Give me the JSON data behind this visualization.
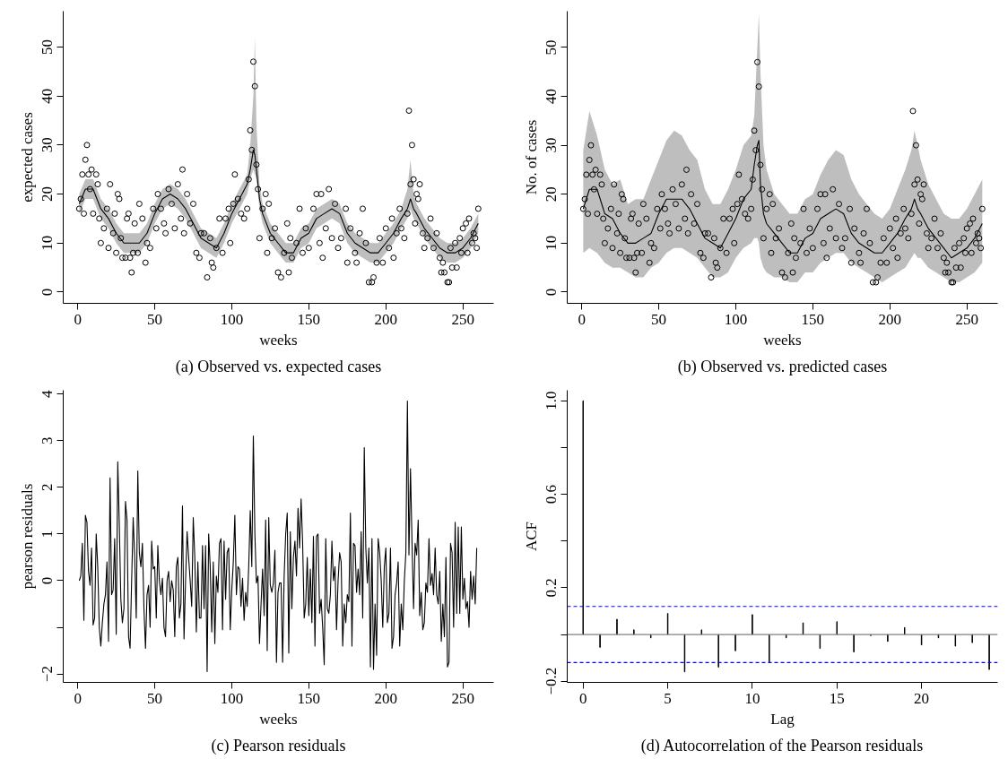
{
  "chart_data": [
    {
      "type": "line",
      "title": "(a) Observed vs. expected cases",
      "xlabel": "weeks",
      "ylabel": "expected cases",
      "xlim": [
        -9.4,
        270
      ],
      "ylim": [
        -2.3,
        57.3
      ],
      "xticks": [
        0,
        50,
        100,
        150,
        200,
        250
      ],
      "yticks": [
        0,
        10,
        20,
        30,
        40,
        50
      ],
      "grid": false,
      "series": [
        {
          "type": "line",
          "color": "#000000",
          "marker": "none",
          "line_style": "solid",
          "x": [
            1,
            5,
            10,
            15,
            20,
            25,
            30,
            35,
            40,
            45,
            50,
            55,
            60,
            65,
            70,
            75,
            80,
            85,
            90,
            95,
            100,
            105,
            110,
            112,
            114,
            115,
            116,
            118,
            120,
            125,
            130,
            135,
            140,
            145,
            150,
            155,
            160,
            165,
            170,
            175,
            180,
            185,
            190,
            195,
            200,
            205,
            210,
            214,
            216,
            218,
            220,
            225,
            230,
            235,
            240,
            245,
            250,
            255,
            260
          ],
          "values": [
            18,
            21,
            21,
            17,
            15,
            12,
            10,
            10,
            10,
            12,
            16,
            19,
            20,
            19,
            17,
            14,
            11,
            10,
            9,
            12,
            16,
            19,
            22,
            25,
            29,
            28,
            25,
            19,
            16,
            12,
            10,
            8,
            8,
            11,
            12,
            15,
            16,
            17,
            16,
            12,
            10,
            9,
            8,
            8,
            10,
            12,
            15,
            17,
            19,
            17,
            16,
            13,
            11,
            9,
            8,
            8,
            9,
            11,
            14
          ],
          "lower": [
            16,
            19,
            19,
            15,
            13,
            10,
            8,
            8,
            8,
            10,
            14,
            17,
            18,
            17,
            15,
            12,
            9,
            8,
            7,
            10,
            14,
            17,
            20,
            23,
            25,
            24,
            23,
            17,
            14,
            10,
            8,
            6,
            6,
            9,
            10,
            13,
            14,
            15,
            14,
            10,
            8,
            7,
            6,
            6,
            8,
            10,
            13,
            15,
            17,
            15,
            14,
            11,
            9,
            7,
            6,
            6,
            7,
            9,
            12
          ],
          "upper": [
            20,
            23,
            23,
            19,
            17,
            14,
            12,
            12,
            12,
            14,
            18,
            21,
            22,
            21,
            19,
            16,
            13,
            12,
            11,
            14,
            18,
            21,
            24,
            30,
            40,
            52,
            34,
            22,
            18,
            14,
            12,
            10,
            10,
            13,
            14,
            17,
            18,
            19,
            18,
            14,
            12,
            11,
            10,
            10,
            12,
            14,
            17,
            21,
            27,
            20,
            18,
            15,
            13,
            11,
            10,
            10,
            11,
            13,
            16
          ]
        },
        {
          "type": "scatter",
          "color": "#000000",
          "marker": "circle",
          "x": [
            1,
            2,
            3,
            4,
            5,
            6,
            7,
            8,
            9,
            10,
            12,
            13,
            14,
            15,
            17,
            19,
            20,
            21,
            23,
            24,
            25,
            26,
            27,
            28,
            29,
            31,
            32,
            33,
            34,
            35,
            36,
            37,
            39,
            40,
            42,
            44,
            45,
            47,
            49,
            51,
            52,
            54,
            56,
            57,
            59,
            61,
            63,
            65,
            67,
            68,
            69,
            71,
            73,
            75,
            77,
            79,
            80,
            82,
            84,
            86,
            87,
            88,
            90,
            92,
            94,
            96,
            98,
            99,
            101,
            102,
            104,
            106,
            108,
            110,
            111,
            112,
            113,
            114,
            115,
            116,
            117,
            118,
            120,
            122,
            123,
            124,
            126,
            128,
            130,
            132,
            134,
            136,
            137,
            138,
            139,
            142,
            144,
            146,
            148,
            150,
            153,
            155,
            157,
            158,
            159,
            161,
            163,
            165,
            167,
            169,
            171,
            174,
            175,
            177,
            180,
            181,
            183,
            185,
            187,
            189,
            191,
            192,
            194,
            196,
            198,
            200,
            202,
            204,
            205,
            207,
            209,
            210,
            212,
            214,
            215,
            216,
            217,
            218,
            219,
            220,
            221,
            222,
            224,
            225,
            227,
            229,
            231,
            233,
            235,
            236,
            237,
            238,
            240,
            241,
            242,
            243,
            245,
            246,
            248,
            249,
            250,
            252,
            253,
            254,
            256,
            257,
            258,
            259,
            260
          ],
          "values": [
            17,
            19,
            24,
            16,
            27,
            30,
            24,
            21,
            25,
            16,
            24,
            22,
            15,
            10,
            13,
            17,
            9,
            22,
            12,
            16,
            8,
            20,
            19,
            11,
            7,
            7,
            15,
            16,
            7,
            4,
            8,
            14,
            8,
            18,
            15,
            6,
            10,
            9,
            17,
            13,
            20,
            17,
            14,
            12,
            21,
            18,
            13,
            22,
            15,
            25,
            12,
            20,
            14,
            18,
            8,
            7,
            12,
            12,
            3,
            11,
            6,
            5,
            9,
            15,
            8,
            15,
            17,
            10,
            18,
            24,
            19,
            16,
            15,
            17,
            23,
            33,
            29,
            47,
            42,
            26,
            21,
            11,
            17,
            20,
            8,
            18,
            11,
            13,
            4,
            3,
            8,
            14,
            4,
            11,
            7,
            10,
            17,
            8,
            13,
            9,
            17,
            20,
            10,
            20,
            7,
            13,
            21,
            11,
            18,
            9,
            11,
            17,
            6,
            13,
            8,
            6,
            12,
            17,
            10,
            2,
            2,
            3,
            6,
            11,
            6,
            13,
            9,
            15,
            7,
            12,
            17,
            13,
            11,
            16,
            37,
            22,
            30,
            23,
            14,
            20,
            19,
            22,
            12,
            9,
            11,
            15,
            9,
            12,
            7,
            4,
            6,
            4,
            2,
            2,
            9,
            5,
            10,
            5,
            11,
            8,
            13,
            14,
            8,
            15,
            10,
            12,
            11,
            9,
            17
          ]
        }
      ]
    },
    {
      "type": "line",
      "title": "(b) Observed vs. predicted cases",
      "xlabel": "weeks",
      "ylabel": "No. of cases",
      "xlim": [
        -9.4,
        270
      ],
      "ylim": [
        -2.3,
        57.4
      ],
      "xticks": [
        0,
        50,
        100,
        150,
        200,
        250
      ],
      "yticks": [
        0,
        10,
        20,
        30,
        40,
        50
      ],
      "grid": false,
      "series": [
        {
          "type": "line",
          "color": "#000000",
          "marker": "none",
          "line_style": "solid",
          "x": [
            1,
            5,
            10,
            15,
            20,
            25,
            30,
            35,
            40,
            45,
            50,
            55,
            60,
            65,
            70,
            75,
            80,
            85,
            90,
            95,
            100,
            105,
            110,
            112,
            114,
            115,
            116,
            118,
            120,
            125,
            130,
            135,
            140,
            145,
            150,
            155,
            160,
            165,
            170,
            175,
            180,
            185,
            190,
            195,
            200,
            205,
            210,
            214,
            216,
            218,
            220,
            225,
            230,
            235,
            240,
            245,
            250,
            255,
            260
          ],
          "values": [
            17,
            21,
            21,
            16,
            15,
            12,
            10,
            10,
            11,
            12,
            16,
            19,
            19,
            19,
            17,
            14,
            11,
            10,
            9,
            12,
            15,
            19,
            21,
            26,
            30,
            31,
            22,
            16,
            14,
            12,
            10,
            8,
            8,
            11,
            12,
            15,
            16,
            17,
            16,
            12,
            10,
            9,
            8,
            8,
            10,
            12,
            15,
            17,
            19,
            17,
            16,
            13,
            11,
            9,
            7,
            8,
            9,
            11,
            14
          ],
          "lower": [
            8,
            9,
            8,
            6,
            5,
            5,
            4,
            3,
            3,
            5,
            6,
            8,
            9,
            9,
            8,
            7,
            5,
            3,
            3,
            4,
            7,
            9,
            10,
            11,
            11,
            10,
            7,
            5,
            4,
            3,
            3,
            2,
            2,
            4,
            4,
            6,
            7,
            8,
            8,
            6,
            5,
            4,
            3,
            2,
            3,
            4,
            5,
            7,
            8,
            7,
            7,
            5,
            4,
            3,
            2,
            2,
            3,
            4,
            6
          ],
          "upper": [
            29,
            37,
            32,
            25,
            22,
            23,
            18,
            19,
            19,
            23,
            27,
            31,
            33,
            32,
            29,
            27,
            21,
            18,
            18,
            21,
            25,
            30,
            32,
            36,
            50,
            57,
            45,
            30,
            25,
            20,
            18,
            16,
            16,
            19,
            20,
            24,
            27,
            29,
            28,
            23,
            20,
            18,
            16,
            15,
            17,
            21,
            25,
            29,
            33,
            30,
            27,
            22,
            19,
            16,
            15,
            15,
            17,
            20,
            23
          ]
        },
        {
          "type": "scatter",
          "color": "#000000",
          "marker": "circle",
          "x": [
            1,
            2,
            3,
            4,
            5,
            6,
            7,
            8,
            9,
            10,
            12,
            13,
            14,
            15,
            17,
            19,
            20,
            21,
            23,
            24,
            25,
            26,
            27,
            28,
            29,
            31,
            32,
            33,
            34,
            35,
            36,
            37,
            39,
            40,
            42,
            44,
            45,
            47,
            49,
            51,
            52,
            54,
            56,
            57,
            59,
            61,
            63,
            65,
            67,
            68,
            69,
            71,
            73,
            75,
            77,
            79,
            80,
            82,
            84,
            86,
            87,
            88,
            90,
            92,
            94,
            96,
            98,
            99,
            101,
            102,
            104,
            106,
            108,
            110,
            111,
            112,
            113,
            114,
            115,
            116,
            117,
            118,
            120,
            122,
            123,
            124,
            126,
            128,
            130,
            132,
            134,
            136,
            137,
            138,
            139,
            142,
            144,
            146,
            148,
            150,
            153,
            155,
            157,
            158,
            159,
            161,
            163,
            165,
            167,
            169,
            171,
            174,
            175,
            177,
            180,
            181,
            183,
            185,
            187,
            189,
            191,
            192,
            194,
            196,
            198,
            200,
            202,
            204,
            205,
            207,
            209,
            210,
            212,
            214,
            215,
            216,
            217,
            218,
            219,
            220,
            221,
            222,
            224,
            225,
            227,
            229,
            231,
            233,
            235,
            236,
            237,
            238,
            240,
            241,
            242,
            243,
            245,
            246,
            248,
            249,
            250,
            252,
            253,
            254,
            256,
            257,
            258,
            259,
            260
          ],
          "values": [
            17,
            19,
            24,
            16,
            27,
            30,
            24,
            21,
            25,
            16,
            24,
            22,
            15,
            10,
            13,
            17,
            9,
            22,
            12,
            16,
            8,
            20,
            19,
            11,
            7,
            7,
            15,
            16,
            7,
            4,
            8,
            14,
            8,
            18,
            15,
            6,
            10,
            9,
            17,
            13,
            20,
            17,
            14,
            12,
            21,
            18,
            13,
            22,
            15,
            25,
            12,
            20,
            14,
            18,
            8,
            7,
            12,
            12,
            3,
            11,
            6,
            5,
            9,
            15,
            8,
            15,
            17,
            10,
            18,
            24,
            19,
            16,
            15,
            17,
            23,
            33,
            29,
            47,
            42,
            26,
            21,
            11,
            17,
            20,
            8,
            18,
            11,
            13,
            4,
            3,
            8,
            14,
            4,
            11,
            7,
            10,
            17,
            8,
            13,
            9,
            17,
            20,
            10,
            20,
            7,
            13,
            21,
            11,
            18,
            9,
            11,
            17,
            6,
            13,
            8,
            6,
            12,
            17,
            10,
            2,
            2,
            3,
            6,
            11,
            6,
            13,
            9,
            15,
            7,
            12,
            17,
            13,
            11,
            16,
            37,
            22,
            30,
            23,
            14,
            20,
            19,
            22,
            12,
            9,
            11,
            15,
            9,
            12,
            7,
            4,
            6,
            4,
            2,
            2,
            9,
            5,
            10,
            5,
            11,
            8,
            13,
            14,
            8,
            15,
            10,
            12,
            11,
            9,
            17
          ]
        }
      ]
    },
    {
      "type": "line",
      "title": "(c) Pearson residuals",
      "xlabel": "weeks",
      "ylabel": "pearson residuals",
      "xlim": [
        -9.4,
        270
      ],
      "ylim": [
        -2.18,
        4.08
      ],
      "xticks": [
        0,
        50,
        100,
        150,
        200,
        250
      ],
      "yticks": [
        {
          "value": -2,
          "label": "−2"
        },
        {
          "value": -1,
          "label": null
        },
        0,
        1,
        2,
        3,
        4
      ],
      "grid": false,
      "color": "#000000",
      "marker": "none",
      "line_style": "solid",
      "x": [
        1,
        2,
        3,
        4,
        5,
        6,
        7,
        8,
        9,
        10,
        11,
        12,
        13,
        14,
        15,
        16,
        17,
        18,
        19,
        20,
        21,
        22,
        23,
        24,
        25,
        26,
        27,
        28,
        29,
        30,
        31,
        32,
        33,
        34,
        35,
        36,
        37,
        38,
        39,
        40,
        41,
        42,
        43,
        44,
        45,
        46,
        47,
        48,
        49,
        50,
        51,
        52,
        53,
        54,
        55,
        56,
        57,
        58,
        59,
        60,
        61,
        62,
        63,
        64,
        65,
        66,
        67,
        68,
        69,
        70,
        71,
        72,
        73,
        74,
        75,
        76,
        77,
        78,
        79,
        80,
        81,
        82,
        83,
        84,
        85,
        86,
        87,
        88,
        89,
        90,
        91,
        92,
        93,
        94,
        95,
        96,
        97,
        98,
        99,
        100,
        101,
        102,
        103,
        104,
        105,
        106,
        107,
        108,
        109,
        110,
        111,
        112,
        113,
        114,
        115,
        116,
        117,
        118,
        119,
        120,
        121,
        122,
        123,
        124,
        125,
        126,
        127,
        128,
        129,
        130,
        131,
        132,
        133,
        134,
        135,
        136,
        137,
        138,
        139,
        140,
        141,
        142,
        143,
        144,
        145,
        146,
        147,
        148,
        149,
        150,
        151,
        152,
        153,
        154,
        155,
        156,
        157,
        158,
        159,
        160,
        161,
        162,
        163,
        164,
        165,
        166,
        167,
        168,
        169,
        170,
        171,
        172,
        173,
        174,
        175,
        176,
        177,
        178,
        179,
        180,
        181,
        182,
        183,
        184,
        185,
        186,
        187,
        188,
        189,
        190,
        191,
        192,
        193,
        194,
        195,
        196,
        197,
        198,
        199,
        200,
        201,
        202,
        203,
        204,
        205,
        206,
        207,
        208,
        209,
        210,
        211,
        212,
        213,
        214,
        215,
        216,
        217,
        218,
        219,
        220,
        221,
        222,
        223,
        224,
        225,
        226,
        227,
        228,
        229,
        230,
        231,
        232,
        233,
        234,
        235,
        236,
        237,
        238,
        239,
        240,
        241,
        242,
        243,
        244,
        245,
        246,
        247,
        248,
        249,
        250,
        251,
        252,
        253,
        254,
        255,
        256,
        257,
        258,
        259
      ],
      "values": [
        0.0,
        0.1,
        0.8,
        -0.85,
        1.4,
        1.25,
        0.2,
        -0.1,
        0.7,
        -0.95,
        -0.8,
        1.0,
        0.3,
        -1.0,
        -1.4,
        -0.9,
        -0.5,
        -0.3,
        0.4,
        -1.3,
        2.2,
        -0.3,
        -0.2,
        0.9,
        -1.15,
        2.55,
        1.2,
        -0.4,
        -0.9,
        -0.6,
        1.7,
        1.3,
        -1.2,
        -1.45,
        0.0,
        1.35,
        0.5,
        -0.8,
        2.35,
        0.6,
        0.3,
        0.8,
        -0.6,
        -1.45,
        -0.3,
        -0.1,
        -1.0,
        0.85,
        0.25,
        0.3,
        -0.8,
        0.75,
        0.0,
        -0.3,
        0.05,
        -1.0,
        -1.2,
        0.0,
        0.2,
        -0.45,
        0.0,
        -0.2,
        -1.2,
        0.3,
        0.5,
        -0.8,
        -0.5,
        1.6,
        -1.25,
        0.0,
        1.05,
        0.5,
        0.0,
        -0.55,
        1.35,
        0.5,
        -1.1,
        0.4,
        -0.8,
        -0.8,
        0.75,
        -0.6,
        0.75,
        -1.95,
        1.0,
        0.3,
        -1.1,
        0.4,
        -1.35,
        0.1,
        -0.25,
        0.8,
        0.9,
        -1.05,
        0.85,
        -0.4,
        0.6,
        0.7,
        -1.05,
        -0.2,
        0.4,
        1.4,
        -0.3,
        0.3,
        0.25,
        -0.55,
        0.05,
        -0.85,
        -0.25,
        -0.55,
        0.3,
        1.5,
        0.3,
        3.1,
        1.0,
        -0.05,
        0.1,
        -1.35,
        -0.5,
        0.25,
        -0.75,
        1.3,
        -1.5,
        1.35,
        -0.1,
        -0.25,
        -0.05,
        0.65,
        -1.75,
        -0.25,
        -0.05,
        -0.05,
        -1.75,
        0.1,
        1.0,
        1.45,
        -1.55,
        1.05,
        -0.6,
        0.5,
        0.85,
        0.1,
        1.55,
        0.7,
        1.75,
        0.8,
        -0.8,
        -0.5,
        0.5,
        -0.75,
        0.25,
        -0.9,
        0.95,
        -1.4,
        0.95,
        1.0,
        -0.7,
        -0.4,
        -1.0,
        -1.8,
        0.9,
        -0.6,
        -0.7,
        -0.3,
        0.85,
        0.0,
        0.3,
        -1.05,
        0.0,
        0.6,
        0.4,
        -1.4,
        -0.5,
        -0.9,
        -0.3,
        -0.45,
        1.45,
        -1.4,
        0.8,
        0.75,
        -0.25,
        0.25,
        -0.3,
        1.05,
        -0.8,
        2.85,
        0.7,
        -0.05,
        0.7,
        -1.85,
        0.9,
        -1.9,
        -0.5,
        -1.6,
        0.9,
        0.6,
        0.0,
        -1.0,
        0.3,
        0.7,
        -0.9,
        -0.7,
        0.7,
        -1.45,
        -1.2,
        -0.3,
        -0.05,
        0.4,
        -1.4,
        -0.5,
        -1.05,
        0.0,
        0.6,
        3.85,
        0.55,
        2.4,
        0.8,
        -0.6,
        0.8,
        0.55,
        1.3,
        -0.75,
        -0.25,
        -1.05,
        -0.9,
        -0.05,
        -0.25,
        0.9,
        -0.1,
        0.15,
        -0.3,
        0.7,
        -0.3,
        -0.5,
        0.2,
        -1.3,
        -0.5,
        -1.2,
        0.5,
        -1.85,
        -1.75,
        0.8,
        0.6,
        -1.0,
        1.25,
        -0.7,
        1.15,
        -0.7,
        1.15,
        -0.4,
        0.05,
        -0.6,
        -0.45,
        -1.0,
        0.2,
        -0.4,
        0.1,
        -0.5,
        0.7
      ]
    },
    {
      "type": "bar",
      "title": "(d) Autocorrelation of the Pearson residuals",
      "xlabel": "Lag",
      "ylabel": "ACF",
      "xlim": [
        -0.94,
        24.5
      ],
      "ylim": [
        -0.205,
        1.045
      ],
      "xticks": [
        0,
        5,
        10,
        15,
        20
      ],
      "yticks": [
        {
          "value": -0.2,
          "label": "−0.2"
        },
        {
          "value": 0.0,
          "label": null
        },
        {
          "value": 0.2,
          "label": "0.2"
        },
        {
          "value": 0.4,
          "label": null
        },
        {
          "value": 0.6,
          "label": "0.6"
        },
        {
          "value": 0.8,
          "label": null
        },
        {
          "value": 1.0,
          "label": "1.0"
        }
      ],
      "grid": false,
      "color": "#000000",
      "x": [
        0,
        1,
        2,
        3,
        4,
        5,
        6,
        7,
        8,
        9,
        10,
        11,
        12,
        13,
        14,
        15,
        16,
        17,
        18,
        19,
        20,
        21,
        22,
        23,
        24
      ],
      "values": [
        1.0,
        -0.055,
        0.065,
        0.02,
        -0.015,
        0.09,
        -0.16,
        0.02,
        -0.14,
        -0.07,
        0.085,
        -0.12,
        -0.015,
        0.05,
        -0.06,
        0.055,
        -0.075,
        -0.005,
        -0.03,
        0.03,
        -0.045,
        -0.015,
        -0.05,
        -0.035,
        -0.15
      ],
      "ref_lines": [
        {
          "axis": "y",
          "value": 0,
          "color": "#808080",
          "line_style": "solid"
        },
        {
          "axis": "y",
          "value": 0.12,
          "color": "#0000ff",
          "line_style": "dashed"
        },
        {
          "axis": "y",
          "value": -0.12,
          "color": "#0000ff",
          "line_style": "dashed"
        }
      ]
    }
  ]
}
